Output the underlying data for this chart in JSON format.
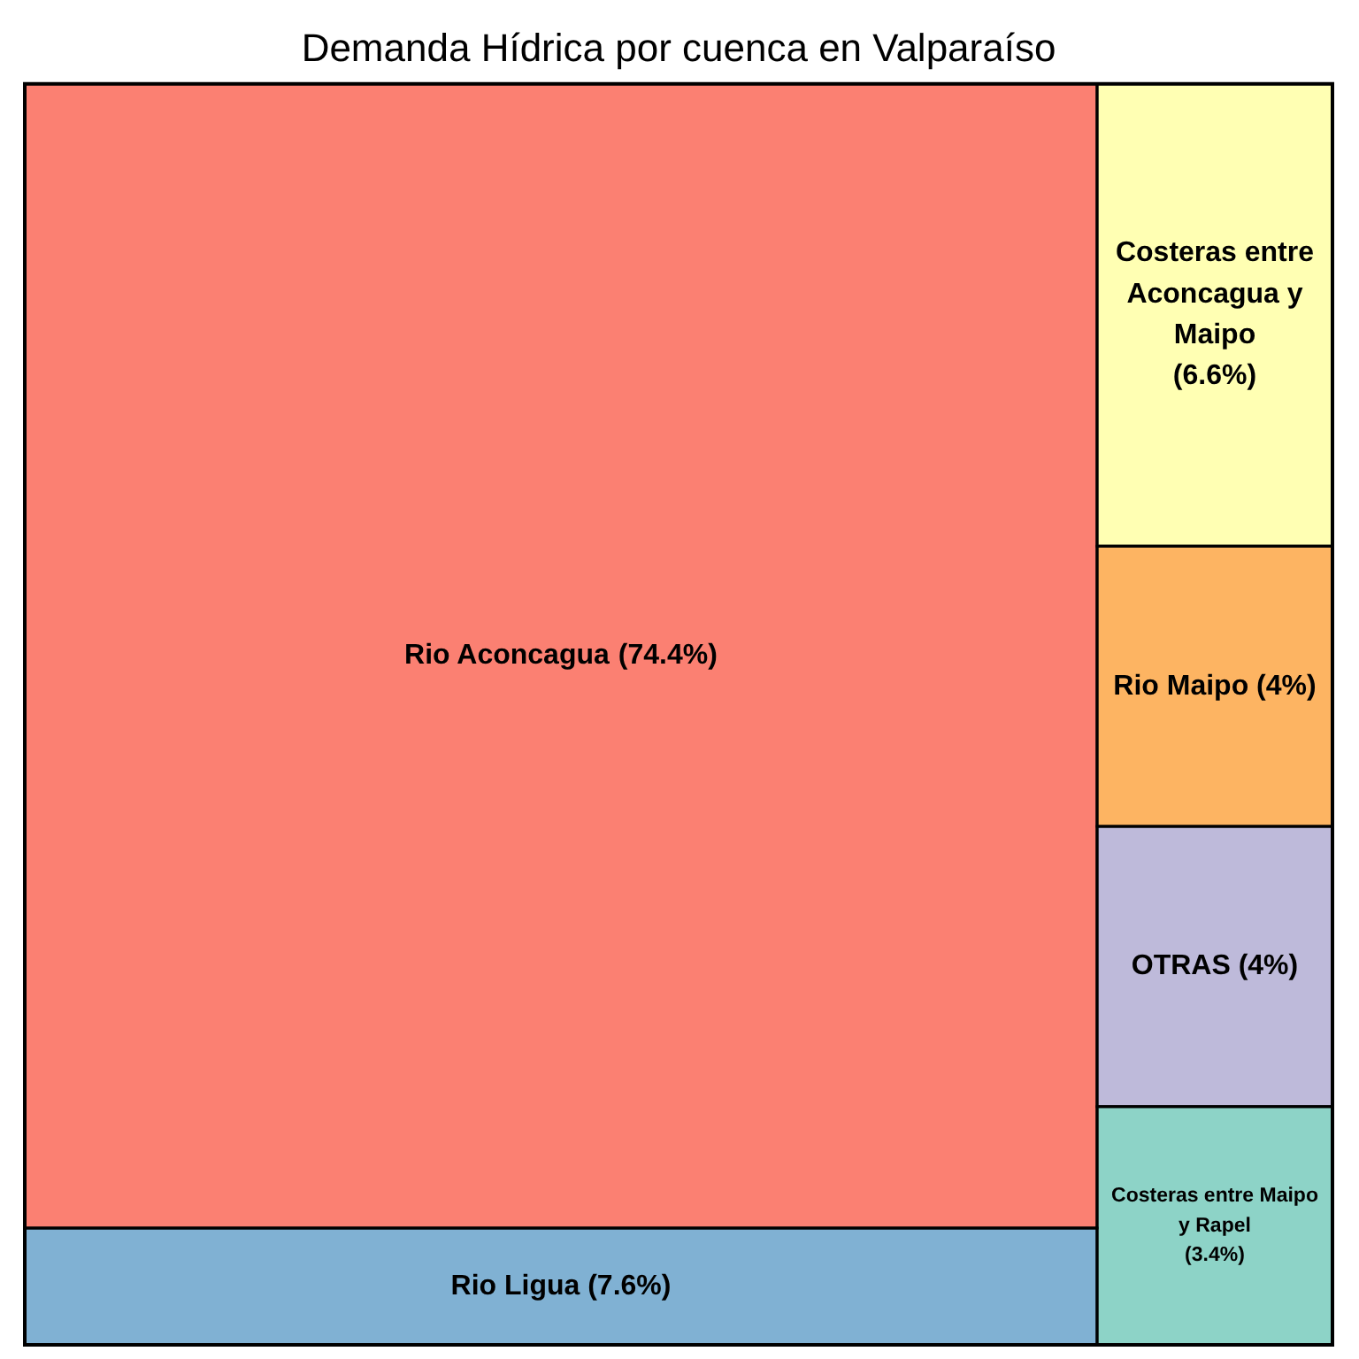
{
  "chart_data": {
    "type": "other",
    "title": "Demanda Hídrica por cuenca en Valparaíso",
    "categories": [
      "Rio Aconcagua",
      "Rio Ligua",
      "Costeras entre Aconcagua y Maipo",
      "Rio Maipo",
      "OTRAS",
      "Costeras entre Maipo y Rapel"
    ],
    "values": [
      74.4,
      7.6,
      6.6,
      4,
      4,
      3.4
    ],
    "value_labels": [
      "(74.4%)",
      "(7.6%)",
      "(6.6%)",
      "(4%)",
      "(4%)",
      "(3.4%)"
    ],
    "colors": [
      "#fb8072",
      "#80b1d3",
      "#ffffb3",
      "#fdb462",
      "#bebada",
      "#8dd3c7"
    ]
  }
}
